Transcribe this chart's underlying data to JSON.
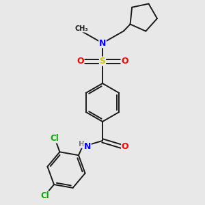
{
  "background_color": "#e8e8e8",
  "bond_color": "#1a1a1a",
  "atom_colors": {
    "N": "#0000ff",
    "O": "#ff0000",
    "S": "#cccc00",
    "Cl": "#00aa00",
    "C": "#1a1a1a",
    "H": "#7a7a7a"
  },
  "figsize": [
    3.0,
    3.0
  ],
  "dpi": 100
}
